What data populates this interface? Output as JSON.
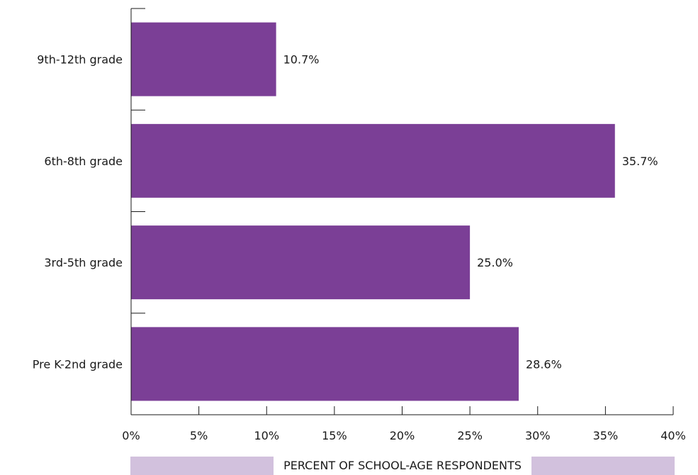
{
  "chart_data": {
    "type": "bar",
    "orientation": "horizontal",
    "categories": [
      "9th-12th grade",
      "6th-8th grade",
      "3rd-5th grade",
      "Pre K-2nd grade"
    ],
    "values": [
      10.7,
      35.7,
      25.0,
      28.6
    ],
    "data_labels": [
      "10.7%",
      "35.7%",
      "25.0%",
      "28.6%"
    ],
    "xlim": [
      0,
      40
    ],
    "x_ticks": [
      0,
      5,
      10,
      15,
      20,
      25,
      30,
      35,
      40
    ],
    "x_tick_labels": [
      "0%",
      "5%",
      "10%",
      "15%",
      "20%",
      "25%",
      "30%",
      "35%",
      "40%"
    ],
    "xlabel": "PERCENT OF SCHOOL-AGE RESPONDENTS",
    "ylabel": "",
    "title": "",
    "grid": false,
    "legend": "none",
    "bar_color": "#7b3f96",
    "band_color": "#d2c1dd"
  }
}
